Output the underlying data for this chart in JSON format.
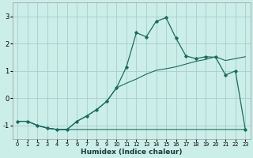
{
  "xlabel": "Humidex (Indice chaleur)",
  "background_color": "#cceee8",
  "grid_color": "#aacccc",
  "line_color": "#1a6b5e",
  "xlim": [
    -0.5,
    23.5
  ],
  "ylim": [
    -1.5,
    3.5
  ],
  "yticks": [
    -1,
    0,
    1,
    2,
    3
  ],
  "xticks": [
    0,
    1,
    2,
    3,
    4,
    5,
    6,
    7,
    8,
    9,
    10,
    11,
    12,
    13,
    14,
    15,
    16,
    17,
    18,
    19,
    20,
    21,
    22,
    23
  ],
  "curve_main_x": [
    0,
    1,
    2,
    3,
    4,
    5,
    6,
    7,
    8,
    9,
    10,
    11,
    12,
    13,
    14,
    15,
    16,
    17,
    18,
    19,
    20,
    21,
    22,
    23
  ],
  "curve_main_y": [
    -0.85,
    -0.85,
    -1.0,
    -1.1,
    -1.15,
    -1.15,
    -0.85,
    -0.65,
    -0.42,
    -0.12,
    0.38,
    1.15,
    2.4,
    2.25,
    2.82,
    2.95,
    2.2,
    1.55,
    1.45,
    1.52,
    1.5,
    0.85,
    1.0,
    -1.15
  ],
  "curve_diag_x": [
    0,
    1,
    2,
    3,
    4,
    5,
    6,
    7,
    8,
    9,
    10,
    11,
    12,
    13,
    14,
    15,
    16,
    17,
    18,
    19,
    20,
    21,
    22,
    23
  ],
  "curve_diag_y": [
    -0.85,
    -0.85,
    -1.0,
    -1.1,
    -1.15,
    -1.15,
    -0.85,
    -0.65,
    -0.42,
    -0.12,
    0.38,
    0.55,
    0.7,
    0.88,
    1.02,
    1.08,
    1.15,
    1.25,
    1.35,
    1.42,
    1.52,
    1.38,
    1.45,
    1.52
  ],
  "curve_flat_x": [
    0,
    1,
    2,
    3,
    4,
    5,
    6,
    7,
    8,
    9,
    10,
    11,
    15,
    16,
    22,
    23
  ],
  "curve_flat_y": [
    -0.85,
    -0.85,
    -1.0,
    -1.1,
    -1.15,
    -1.15,
    -1.15,
    -1.15,
    -1.15,
    -1.15,
    -1.15,
    -1.15,
    -1.15,
    -1.15,
    -1.15,
    -1.15
  ]
}
